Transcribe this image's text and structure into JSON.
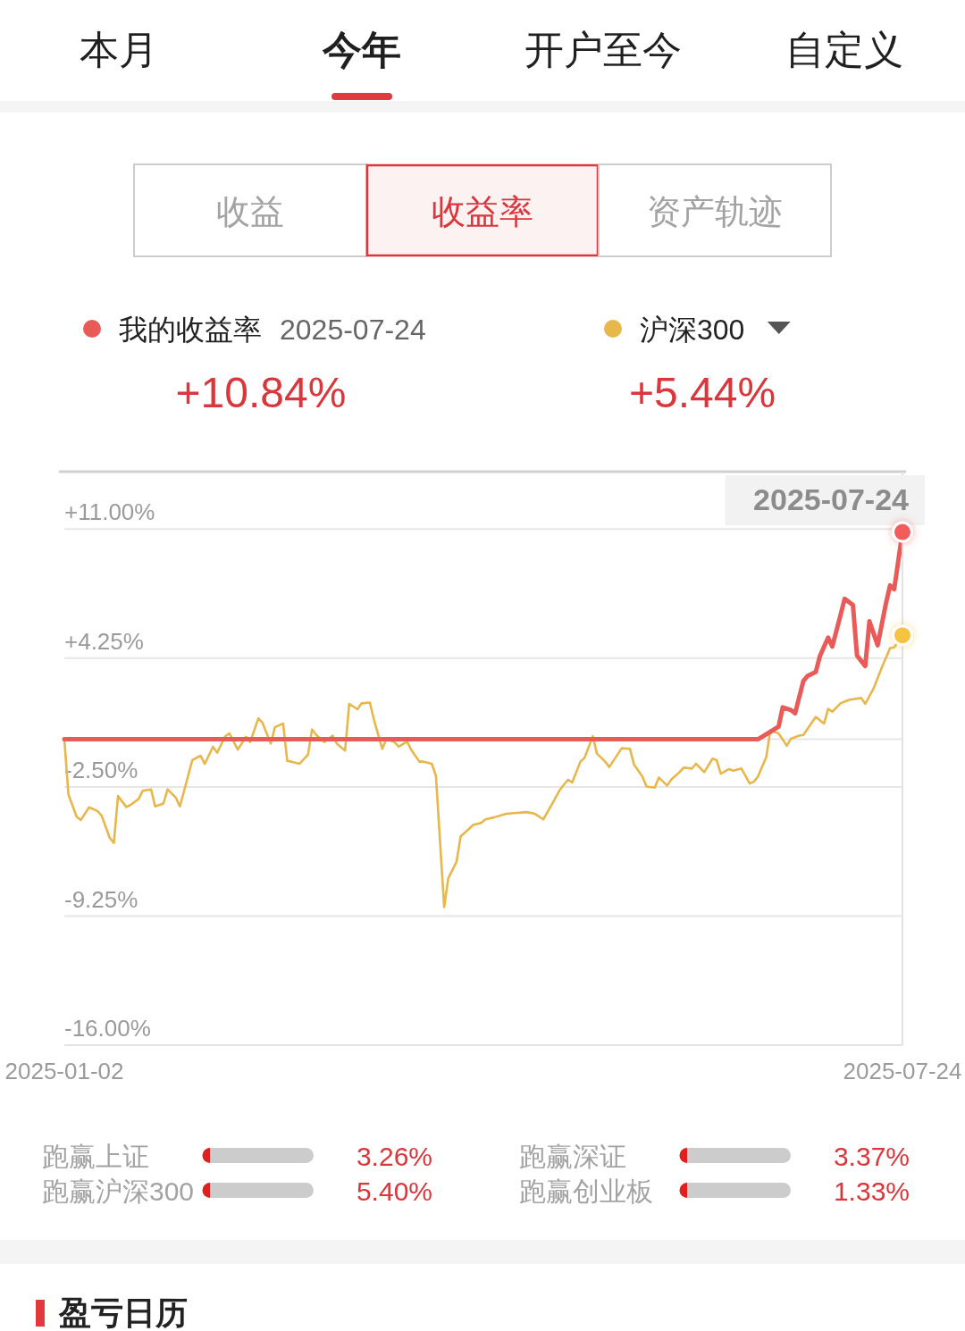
{
  "chart_data": [
    {
      "type": "line",
      "annotations": [
        "本月",
        "今年",
        "开户至今",
        "自定义",
        "收益",
        "收益率",
        "资产轨迹",
        "2025-07-24",
        "+10.84%",
        "+5.44%"
      ],
      "series": [
        {
          "name": "我的收益率",
          "color": "#e85b58",
          "x": [
            "2025-01-02",
            "2025-06-19",
            "2025-06-22",
            "2025-06-24",
            "2025-06-25",
            "2025-06-27",
            "2025-06-28",
            "2025-06-30",
            "2025-07-01",
            "2025-07-03",
            "2025-07-04",
            "2025-07-06",
            "2025-07-07",
            "2025-07-09",
            "2025-07-10",
            "2025-07-12",
            "2025-07-13",
            "2025-07-15",
            "2025-07-16",
            "2025-07-18",
            "2025-07-20",
            "2025-07-21",
            "2025-07-22",
            "2025-07-24"
          ],
          "values": [
            0,
            0,
            0.39,
            0.66,
            1.67,
            1.53,
            1.36,
            3.05,
            3.31,
            3.52,
            4.35,
            5.32,
            4.85,
            6.49,
            7.35,
            7.03,
            4.38,
            3.83,
            6.17,
            4.92,
            7.11,
            8.05,
            7.85,
            10.84
          ]
        },
        {
          "name": "沪深300",
          "color": "#e8b74b",
          "x": [
            "2025-01-02",
            "2025-01-03",
            "2025-01-05",
            "2025-01-06",
            "2025-01-08",
            "2025-01-10",
            "2025-01-11",
            "2025-01-13",
            "2025-01-14",
            "2025-01-15",
            "2025-01-17",
            "2025-01-18",
            "2025-01-20",
            "2025-01-21",
            "2025-01-23",
            "2025-01-24",
            "2025-01-26",
            "2025-01-27",
            "2025-01-29",
            "2025-01-30",
            "2025-02-02",
            "2025-02-04",
            "2025-02-05",
            "2025-02-07",
            "2025-02-08",
            "2025-02-10",
            "2025-02-11",
            "2025-02-13",
            "2025-02-15",
            "2025-02-16",
            "2025-02-18",
            "2025-02-19",
            "2025-02-21",
            "2025-02-22",
            "2025-02-24",
            "2025-02-25",
            "2025-02-26",
            "2025-02-28",
            "2025-03-02",
            "2025-03-03",
            "2025-03-04",
            "2025-03-06",
            "2025-03-08",
            "2025-03-09",
            "2025-03-11",
            "2025-03-12",
            "2025-03-14",
            "2025-03-15",
            "2025-03-17",
            "2025-03-18",
            "2025-03-20",
            "2025-03-21",
            "2025-03-23",
            "2025-03-24",
            "2025-03-26",
            "2025-03-27",
            "2025-03-29",
            "2025-03-30",
            "2025-04-01",
            "2025-04-02",
            "2025-04-04",
            "2025-04-05",
            "2025-04-07",
            "2025-04-08",
            "2025-04-10",
            "2025-04-11",
            "2025-04-13",
            "2025-04-14",
            "2025-04-16",
            "2025-04-19",
            "2025-04-21",
            "2025-04-24",
            "2025-04-26",
            "2025-04-28",
            "2025-04-30",
            "2025-05-02",
            "2025-05-04",
            "2025-05-05",
            "2025-05-07",
            "2025-05-08",
            "2025-05-10",
            "2025-05-11",
            "2025-05-13",
            "2025-05-14",
            "2025-05-17",
            "2025-05-19",
            "2025-05-20",
            "2025-05-22",
            "2025-05-23",
            "2025-05-25",
            "2025-05-26",
            "2025-05-28",
            "2025-05-29",
            "2025-05-31",
            "2025-06-01",
            "2025-06-03",
            "2025-06-04",
            "2025-06-06",
            "2025-06-08",
            "2025-06-09",
            "2025-06-10",
            "2025-06-12",
            "2025-06-13",
            "2025-06-15",
            "2025-06-17",
            "2025-06-18",
            "2025-06-19",
            "2025-06-21",
            "2025-06-22",
            "2025-06-24",
            "2025-06-26",
            "2025-06-27",
            "2025-06-29",
            "2025-06-30",
            "2025-07-02",
            "2025-07-03",
            "2025-07-05",
            "2025-07-06",
            "2025-07-07",
            "2025-07-09",
            "2025-07-11",
            "2025-07-14",
            "2025-07-15",
            "2025-07-17",
            "2025-07-19",
            "2025-07-21",
            "2025-07-22",
            "2025-07-24"
          ],
          "values": [
            0,
            -2.89,
            -4.06,
            -4.22,
            -3.56,
            -3.75,
            -3.98,
            -5.16,
            -5.42,
            -2.97,
            -3.54,
            -3.44,
            -3.12,
            -2.69,
            -2.62,
            -3.51,
            -3.36,
            -2.62,
            -3.05,
            -3.51,
            -1.09,
            -0.86,
            -1.29,
            -0.39,
            -0.7,
            0.16,
            0.31,
            -0.54,
            0.13,
            -0.15,
            1.1,
            0.86,
            -0.23,
            0.63,
            0.82,
            -1.13,
            -1.17,
            -1.28,
            -0.81,
            0.52,
            0.23,
            -0.15,
            0.19,
            -0.23,
            -0.59,
            1.85,
            1.57,
            1.88,
            1.92,
            1.02,
            -0.5,
            0,
            -0.15,
            -0.39,
            -0.12,
            -0.54,
            -1.17,
            -1.17,
            -1.28,
            -1.9,
            -8.78,
            -7.27,
            -6.4,
            -5.08,
            -4.69,
            -4.48,
            -4.37,
            -4.19,
            -4.09,
            -3.9,
            -3.86,
            -3.81,
            -3.9,
            -4.19,
            -3.44,
            -2.65,
            -2.11,
            -2.26,
            -1.17,
            -0.97,
            0.16,
            -0.75,
            -1.17,
            -1.45,
            -0.47,
            -0.5,
            -1.33,
            -1.95,
            -2.47,
            -2.53,
            -2,
            -2.42,
            -2.11,
            -1.72,
            -1.48,
            -1.53,
            -1.28,
            -1.72,
            -1.01,
            -1.09,
            -1.8,
            -1.56,
            -1.64,
            -1.53,
            -2.31,
            -2.22,
            -1.95,
            -0.94,
            0.47,
            0.31,
            -0.34,
            0.03,
            0.19,
            0.23,
            0.86,
            1.17,
            0.82,
            1.59,
            1.44,
            1.88,
            2.06,
            2.16,
            1.85,
            2.66,
            3.75,
            4.77,
            4.81,
            5.44
          ]
        },
        {
          "type": "scatter",
          "color": "#f25b5b",
          "x": [
            "2025-07-24"
          ],
          "values": [
            10.84
          ]
        },
        {
          "type": "scatter",
          "color": "#f6c243",
          "x": [
            "2025-07-24"
          ],
          "values": [
            5.44
          ]
        }
      ],
      "xlim": [
        "2025-01-02",
        "2025-07-24"
      ],
      "xticks": [
        "2025-01-02",
        "2025-07-24"
      ],
      "ylim": [
        -16,
        14
      ],
      "yticks": [
        {
          "value": -16,
          "label": "-16.00%"
        },
        {
          "value": -9.25,
          "label": "-9.25%"
        },
        {
          "value": -2.5,
          "label": "-2.50%"
        },
        {
          "value": 4.25,
          "label": "+4.25%"
        },
        {
          "value": 11,
          "label": "+11.00%"
        }
      ],
      "grid": "y",
      "legend": "top",
      "ref_lines": [
        {
          "axis": "y",
          "value": 0
        },
        {
          "axis": "x",
          "value": "2025-07-24",
          "label": "2025-07-24"
        }
      ]
    },
    {
      "type": "other",
      "categories": [
        "跑赢上证",
        "跑赢深证",
        "跑赢沪深300",
        "跑赢创业板"
      ],
      "value_labels": [
        "3.26%",
        "3.37%",
        "5.40%",
        "1.33%"
      ],
      "annotations": [
        "盈亏日历"
      ]
    }
  ]
}
